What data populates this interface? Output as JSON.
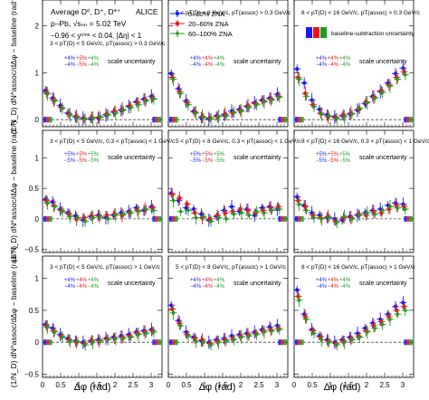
{
  "header": {
    "lines": [
      "Average D⁰, D⁺, D*⁺",
      "p–Pb, √sₙₙ = 5.02 TeV",
      "−0.96 < yᶜᵐˢ < 0.04, |Δη| < 1"
    ],
    "experiment": "ALICE"
  },
  "legend": {
    "entries": [
      "0–20% ZNA",
      "20–60% ZNA",
      "60–100% ZNA"
    ],
    "systematic_label": "baseline-subtraction uncertainty",
    "placement": "top-center"
  },
  "axes": {
    "xlabel": "Δφ (rad)",
    "ylabel": "(1/N_D) dN^assoc/dΔφ − baseline (rad⁻¹)",
    "x_ticks": [
      "0",
      "0.5",
      "1",
      "1.5",
      "2",
      "2.5",
      "3"
    ],
    "y_ticks": [
      [
        "2",
        "1",
        "0"
      ],
      [
        "1",
        "0.5",
        "0",
        "−0.5"
      ],
      [
        "1",
        "0.5",
        "0",
        "−0.5"
      ]
    ]
  },
  "scale_uncertainty_label": "scale uncertainty",
  "chart_data": {
    "type": "scatter",
    "colors": {
      "0-20": "#1a1aff",
      "20-60": "#e8151b",
      "60-100": "#1d9e1d"
    },
    "xlim": [
      0,
      3.3
    ],
    "ylims": [
      [
        -0.15,
        2.55
      ],
      [
        -0.55,
        1.45
      ],
      [
        -0.55,
        1.35
      ]
    ],
    "x": [
      0.11,
      0.31,
      0.52,
      0.73,
      0.94,
      1.15,
      1.36,
      1.57,
      1.78,
      1.99,
      2.2,
      2.41,
      2.62,
      2.83,
      3.04
    ],
    "panels": [
      {
        "pt_label": "3 < pT(D) < 5 GeV/c, pT(assoc) > 0.3 GeV/c",
        "scale_pct": {
          "0-20": "+4%/−4%",
          "20-60": "+5%/−5%",
          "60-100": "+4%/−4%"
        },
        "series": [
          {
            "name": "0–20% ZNA",
            "values": [
              0.62,
              0.46,
              0.3,
              0.14,
              0.06,
              0.03,
              0.02,
              0.04,
              0.1,
              0.16,
              0.2,
              0.28,
              0.38,
              0.44,
              0.5
            ]
          },
          {
            "name": "20–60% ZNA",
            "values": [
              0.58,
              0.42,
              0.26,
              0.12,
              0.07,
              0.02,
              0.05,
              0.05,
              0.12,
              0.18,
              0.22,
              0.3,
              0.36,
              0.42,
              0.46
            ]
          },
          {
            "name": "60–100% ZNA",
            "values": [
              0.55,
              0.4,
              0.24,
              0.1,
              0.04,
              0.01,
              0.03,
              0.06,
              0.1,
              0.14,
              0.2,
              0.26,
              0.32,
              0.4,
              0.44
            ]
          }
        ]
      },
      {
        "pt_label": "5 < pT(D) < 8 GeV/c, pT(assoc) > 0.3 GeV/c",
        "scale_pct": {
          "0-20": "+4%/−4%",
          "20-60": "+4%/−4%",
          "60-100": "+4%/−4%"
        },
        "series": [
          {
            "name": "0–20% ZNA",
            "values": [
              0.98,
              0.66,
              0.4,
              0.18,
              0.04,
              0.02,
              0.08,
              0.1,
              0.18,
              0.22,
              0.28,
              0.36,
              0.42,
              0.46,
              0.54
            ]
          },
          {
            "name": "20–60% ZNA",
            "values": [
              0.9,
              0.6,
              0.36,
              0.16,
              0.07,
              0.04,
              0.06,
              0.12,
              0.14,
              0.2,
              0.3,
              0.34,
              0.4,
              0.44,
              0.5
            ]
          },
          {
            "name": "60–100% ZNA",
            "values": [
              0.86,
              0.56,
              0.32,
              0.14,
              0.05,
              0.02,
              0.07,
              0.08,
              0.16,
              0.18,
              0.26,
              0.32,
              0.38,
              0.42,
              0.48
            ]
          }
        ]
      },
      {
        "pt_label": "8 < pT(D) < 16 GeV/c, pT(assoc) > 0.3 GeV/c",
        "scale_pct": {
          "0-20": "+4%/−4%",
          "20-60": "+4%/−4%",
          "60-100": "+4%/−4%"
        },
        "series": [
          {
            "name": "0–20% ZNA",
            "values": [
              1.08,
              0.78,
              0.42,
              0.22,
              0.1,
              0.06,
              0.08,
              0.12,
              0.2,
              0.34,
              0.5,
              0.6,
              0.78,
              0.98,
              1.1
            ]
          },
          {
            "name": "20–60% ZNA",
            "values": [
              0.9,
              0.56,
              0.32,
              0.14,
              0.06,
              0.04,
              0.1,
              0.14,
              0.22,
              0.38,
              0.48,
              0.62,
              0.74,
              0.9,
              1.02
            ]
          },
          {
            "name": "60–100% ZNA",
            "values": [
              0.86,
              0.5,
              0.28,
              0.12,
              0.08,
              0.02,
              0.06,
              0.12,
              0.24,
              0.36,
              0.46,
              0.58,
              0.72,
              0.86,
              0.96
            ]
          }
        ]
      },
      {
        "pt_label": "3 < pT(D) < 5 GeV/c, 0.3 < pT(assoc) < 1 GeV/c",
        "scale_pct": {
          "0-20": "+5%/−5%",
          "20-60": "+5%/−5%",
          "60-100": "+5%/−5%"
        },
        "series": [
          {
            "name": "0–20% ZNA",
            "values": [
              0.32,
              0.28,
              0.16,
              0.1,
              0.05,
              -0.02,
              0.04,
              0.06,
              0.02,
              0.06,
              0.1,
              0.12,
              0.18,
              0.14,
              0.2
            ]
          },
          {
            "name": "20–60% ZNA",
            "values": [
              0.3,
              0.22,
              0.14,
              0.08,
              0.0,
              0.02,
              0.05,
              0.04,
              0.06,
              0.08,
              0.06,
              0.1,
              0.14,
              0.16,
              0.18
            ]
          },
          {
            "name": "60–100% ZNA",
            "values": [
              0.26,
              0.2,
              0.12,
              0.04,
              0.02,
              -0.04,
              0.02,
              0.04,
              0.0,
              0.06,
              0.08,
              0.1,
              0.12,
              0.16,
              0.14
            ]
          }
        ]
      },
      {
        "pt_label": "5 < pT(D) < 8 GeV/c, 0.3 < pT(assoc) < 1 GeV/c",
        "scale_pct": {
          "0-20": "+5%/−5%",
          "20-60": "+5%/−5%",
          "60-100": "+5%/−5%"
        },
        "series": [
          {
            "name": "0–20% ZNA",
            "values": [
              0.42,
              0.3,
              0.18,
              0.16,
              0.08,
              -0.02,
              0.04,
              0.14,
              0.2,
              0.12,
              0.16,
              0.06,
              0.18,
              0.2,
              0.16
            ]
          },
          {
            "name": "20–60% ZNA",
            "values": [
              0.4,
              0.34,
              0.24,
              0.1,
              0.02,
              0.0,
              0.06,
              0.1,
              0.12,
              0.16,
              0.14,
              0.1,
              0.14,
              0.18,
              0.2
            ]
          },
          {
            "name": "60–100% ZNA",
            "values": [
              0.3,
              0.12,
              0.14,
              0.02,
              0.04,
              -0.04,
              0.02,
              0.0,
              0.08,
              0.1,
              0.06,
              0.12,
              0.1,
              0.14,
              0.16
            ]
          }
        ]
      },
      {
        "pt_label": "8 < pT(D) < 16 GeV/c, 0.3 < pT(assoc) < 1 GeV/c",
        "scale_pct": {
          "0-20": "+5%/−5%",
          "20-60": "+5%/−5%",
          "60-100": "+5%/−5%"
        },
        "series": [
          {
            "name": "0–20% ZNA",
            "values": [
              0.36,
              0.22,
              0.1,
              0.06,
              0.02,
              0.0,
              -0.02,
              0.04,
              0.06,
              0.1,
              0.14,
              0.16,
              0.22,
              0.26,
              0.24
            ]
          },
          {
            "name": "20–60% ZNA",
            "values": [
              0.3,
              0.2,
              0.06,
              0.02,
              0.04,
              -0.04,
              0.02,
              0.02,
              0.08,
              0.06,
              0.12,
              0.1,
              0.16,
              0.22,
              0.2
            ]
          },
          {
            "name": "60–100% ZNA",
            "values": [
              0.24,
              0.14,
              0.02,
              0.0,
              0.02,
              -0.06,
              0.04,
              0.0,
              0.06,
              0.1,
              0.08,
              0.14,
              0.2,
              0.18,
              0.16
            ]
          }
        ]
      },
      {
        "pt_label": "3 < pT(D) < 5 GeV/c, pT(assoc) > 1 GeV/c",
        "scale_pct": {
          "0-20": "+4%/−4%",
          "20-60": "+4%/−4%",
          "60-100": "+4%/−4%"
        },
        "series": [
          {
            "name": "0–20% ZNA",
            "values": [
              0.28,
              0.22,
              0.12,
              0.06,
              0.02,
              0.0,
              0.02,
              0.04,
              0.06,
              0.08,
              0.1,
              0.12,
              0.16,
              0.18,
              0.2
            ]
          },
          {
            "name": "20–60% ZNA",
            "values": [
              0.26,
              0.18,
              0.1,
              0.04,
              0.0,
              -0.02,
              0.03,
              0.02,
              0.06,
              0.06,
              0.08,
              0.1,
              0.14,
              0.16,
              0.18
            ]
          },
          {
            "name": "60–100% ZNA",
            "values": [
              0.24,
              0.16,
              0.08,
              0.02,
              0.01,
              -0.04,
              0.0,
              0.03,
              0.04,
              0.06,
              0.06,
              0.08,
              0.12,
              0.14,
              0.16
            ]
          }
        ]
      },
      {
        "pt_label": "5 < pT(D) < 8 GeV/c, pT(assoc) > 1 GeV/c",
        "scale_pct": {
          "0-20": "+4%/−4%",
          "20-60": "+4%/−4%",
          "60-100": "+4%/−4%"
        },
        "series": [
          {
            "name": "0–20% ZNA",
            "values": [
              0.58,
              0.34,
              0.16,
              0.08,
              0.02,
              0.0,
              0.04,
              0.06,
              0.1,
              0.12,
              0.14,
              0.16,
              0.2,
              0.24,
              0.26
            ]
          },
          {
            "name": "20–60% ZNA",
            "values": [
              0.52,
              0.3,
              0.12,
              0.06,
              0.04,
              -0.02,
              0.02,
              0.04,
              0.06,
              0.1,
              0.12,
              0.14,
              0.18,
              0.2,
              0.22
            ]
          },
          {
            "name": "60–100% ZNA",
            "values": [
              0.46,
              0.26,
              0.1,
              0.02,
              0.0,
              -0.04,
              0.0,
              0.02,
              0.04,
              0.08,
              0.1,
              0.12,
              0.16,
              0.18,
              0.2
            ]
          }
        ]
      },
      {
        "pt_label": "8 < pT(D) < 16 GeV/c, pT(assoc) > 1 GeV/c",
        "scale_pct": {
          "0-20": "+4%/−4%",
          "20-60": "+4%/−4%",
          "60-100": "+4%/−4%"
        },
        "series": [
          {
            "name": "0–20% ZNA",
            "values": [
              0.82,
              0.44,
              0.2,
              0.1,
              0.04,
              0.0,
              0.04,
              0.08,
              0.14,
              0.22,
              0.3,
              0.36,
              0.44,
              0.56,
              0.62
            ]
          },
          {
            "name": "20–60% ZNA",
            "values": [
              0.72,
              0.4,
              0.18,
              0.08,
              0.02,
              -0.02,
              0.02,
              0.06,
              0.1,
              0.18,
              0.26,
              0.32,
              0.4,
              0.5,
              0.56
            ]
          },
          {
            "name": "60–100% ZNA",
            "values": [
              0.66,
              0.36,
              0.14,
              0.04,
              0.0,
              -0.04,
              0.0,
              0.04,
              0.08,
              0.16,
              0.22,
              0.28,
              0.36,
              0.44,
              0.5
            ]
          }
        ]
      }
    ]
  }
}
